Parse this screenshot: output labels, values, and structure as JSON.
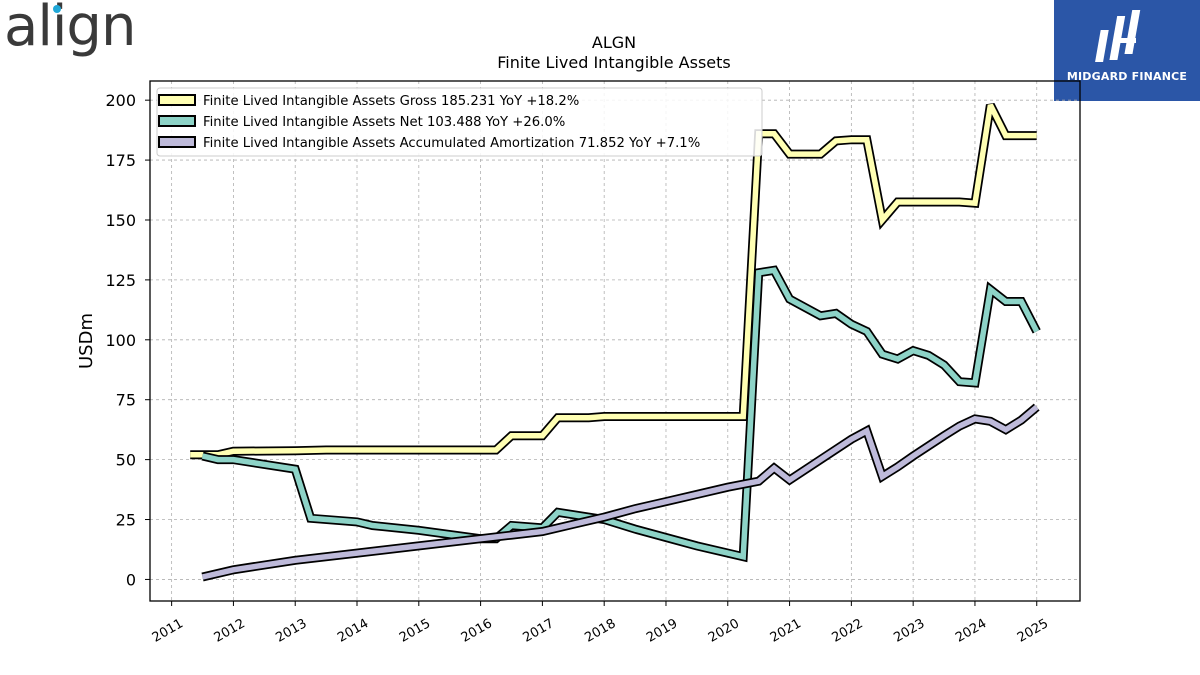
{
  "brand": {
    "company_logo_text": "align",
    "partner_logo_text": "MIDGARD FINANCE"
  },
  "chart_data": {
    "type": "line",
    "title": "ALGN",
    "subtitle": "Finite Lived Intangible Assets",
    "xlabel": "",
    "ylabel": "USDm",
    "xlim": [
      2010.65,
      2025.7
    ],
    "ylim": [
      -9,
      208
    ],
    "x_ticks": [
      "2011",
      "2012",
      "2013",
      "2014",
      "2015",
      "2016",
      "2017",
      "2018",
      "2019",
      "2020",
      "2021",
      "2022",
      "2023",
      "2024",
      "2025"
    ],
    "y_ticks": [
      0,
      25,
      50,
      75,
      100,
      125,
      150,
      175,
      200
    ],
    "grid": true,
    "legend_position": "top-left",
    "series": [
      {
        "name": "Finite Lived Intangible Assets Gross",
        "legend_label": "Finite Lived Intangible Assets Gross  185.231 YoY +18.2%",
        "color": "#ffffb3",
        "x": [
          2011.3,
          2011.75,
          2012.0,
          2013.0,
          2013.5,
          2014.0,
          2015.0,
          2016.0,
          2016.25,
          2016.5,
          2017.0,
          2017.25,
          2017.75,
          2018.0,
          2019.0,
          2020.0,
          2020.25,
          2020.5,
          2020.75,
          2021.0,
          2021.5,
          2021.75,
          2022.0,
          2022.25,
          2022.5,
          2022.75,
          2023.0,
          2023.5,
          2023.75,
          2024.0,
          2024.25,
          2024.5,
          2025.0
        ],
        "y": [
          52,
          52,
          53.5,
          53.7,
          54,
          54,
          54,
          54,
          54,
          60,
          60,
          67.5,
          67.5,
          68,
          68,
          68,
          68,
          186,
          186,
          177.5,
          177.5,
          183,
          183.5,
          183.5,
          150,
          157.5,
          157.5,
          157.5,
          157.5,
          157,
          198,
          185.2,
          185.2
        ]
      },
      {
        "name": "Finite Lived Intangible Assets Net",
        "legend_label": "Finite Lived Intangible Assets Net  103.488 YoY +26.0%",
        "color": "#8dd3c7",
        "x": [
          2011.5,
          2011.75,
          2012.0,
          2013.0,
          2013.25,
          2014.0,
          2014.25,
          2015.0,
          2016.0,
          2016.25,
          2016.5,
          2017.0,
          2017.25,
          2018.0,
          2018.5,
          2019.0,
          2019.5,
          2020.0,
          2020.25,
          2020.5,
          2020.75,
          2021.0,
          2021.5,
          2021.75,
          2022.0,
          2022.25,
          2022.5,
          2022.75,
          2023.0,
          2023.25,
          2023.5,
          2023.75,
          2024.0,
          2024.25,
          2024.5,
          2024.75,
          2025.0
        ],
        "y": [
          51.5,
          50,
          50,
          46,
          25.5,
          24,
          22.5,
          20.5,
          17,
          17,
          22.5,
          21.5,
          28,
          25,
          21,
          17.5,
          14,
          11,
          9.5,
          128,
          129,
          117,
          110,
          111,
          106.5,
          103.5,
          94,
          92,
          95.5,
          93.5,
          89.5,
          82.5,
          82,
          121,
          116,
          116,
          103.5
        ]
      },
      {
        "name": "Finite Lived Intangible Assets Accumulated Amortization",
        "legend_label": "Finite Lived Intangible Assets Accumulated Amortization  71.852 YoY +7.1%",
        "color": "#bebada",
        "x": [
          2011.5,
          2012.0,
          2013.0,
          2014.0,
          2015.0,
          2016.0,
          2016.5,
          2017.0,
          2017.5,
          2018.0,
          2018.5,
          2019.0,
          2019.5,
          2020.0,
          2020.5,
          2020.75,
          2021.0,
          2021.5,
          2022.0,
          2022.25,
          2022.5,
          2022.75,
          2023.0,
          2023.5,
          2023.75,
          2024.0,
          2024.25,
          2024.5,
          2024.75,
          2025.0
        ],
        "y": [
          1,
          4,
          8,
          11,
          14,
          17,
          18.5,
          20,
          23,
          26,
          29.5,
          32.5,
          35.5,
          38.5,
          41,
          46.5,
          41.5,
          50,
          58.5,
          62,
          43,
          47,
          51.5,
          60,
          64,
          67,
          66,
          62.5,
          66.5,
          71.9
        ]
      }
    ]
  }
}
